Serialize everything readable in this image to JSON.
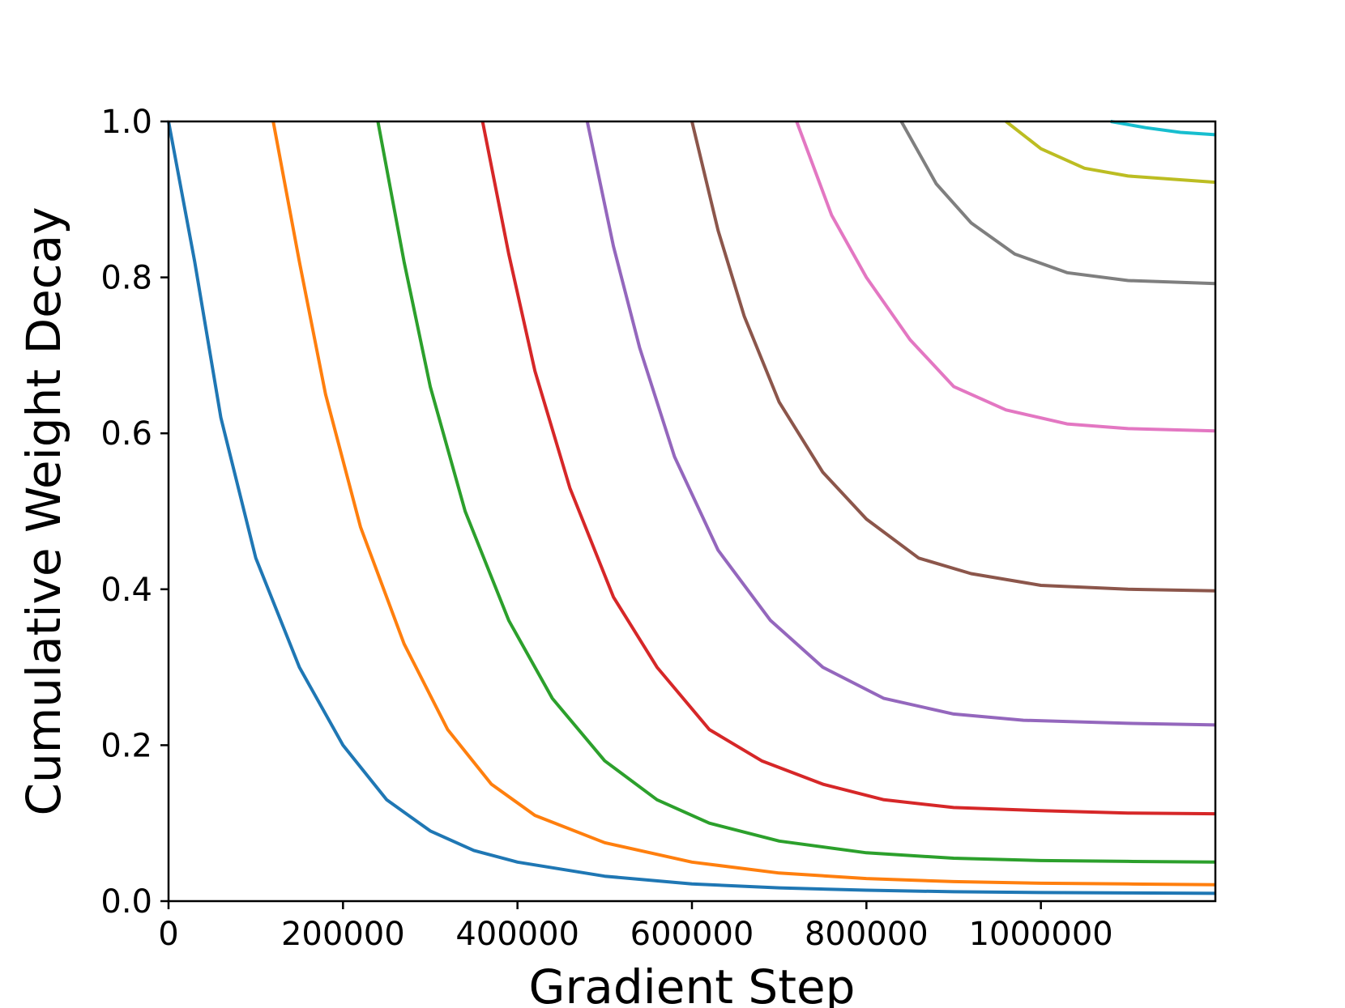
{
  "chart_data": {
    "type": "line",
    "title": "",
    "xlabel": "Gradient Step",
    "ylabel": "Cumulative Weight Decay",
    "xlim": [
      0,
      1200000
    ],
    "ylim": [
      0.0,
      1.0
    ],
    "x_ticks": [
      0,
      200000,
      400000,
      600000,
      800000,
      1000000
    ],
    "x_tick_labels": [
      "0",
      "200000",
      "400000",
      "600000",
      "800000",
      "1000000"
    ],
    "y_ticks": [
      0.0,
      0.2,
      0.4,
      0.6,
      0.8,
      1.0
    ],
    "y_tick_labels": [
      "0.0",
      "0.2",
      "0.4",
      "0.6",
      "0.8",
      "1.0"
    ],
    "grid": false,
    "legend": "none",
    "series": [
      {
        "color": "#1f77b4",
        "points": [
          [
            0,
            1.0
          ],
          [
            30000,
            0.82
          ],
          [
            60000,
            0.62
          ],
          [
            100000,
            0.44
          ],
          [
            150000,
            0.3
          ],
          [
            200000,
            0.2
          ],
          [
            250000,
            0.13
          ],
          [
            300000,
            0.09
          ],
          [
            350000,
            0.065
          ],
          [
            400000,
            0.05
          ],
          [
            500000,
            0.032
          ],
          [
            600000,
            0.022
          ],
          [
            700000,
            0.017
          ],
          [
            800000,
            0.014
          ],
          [
            900000,
            0.012
          ],
          [
            1000000,
            0.011
          ],
          [
            1100000,
            0.0105
          ],
          [
            1200000,
            0.01
          ]
        ]
      },
      {
        "color": "#ff7f0e",
        "points": [
          [
            120000,
            1.0
          ],
          [
            150000,
            0.82
          ],
          [
            180000,
            0.65
          ],
          [
            220000,
            0.48
          ],
          [
            270000,
            0.33
          ],
          [
            320000,
            0.22
          ],
          [
            370000,
            0.15
          ],
          [
            420000,
            0.11
          ],
          [
            500000,
            0.075
          ],
          [
            600000,
            0.05
          ],
          [
            700000,
            0.036
          ],
          [
            800000,
            0.029
          ],
          [
            900000,
            0.025
          ],
          [
            1000000,
            0.023
          ],
          [
            1100000,
            0.022
          ],
          [
            1200000,
            0.021
          ]
        ]
      },
      {
        "color": "#2ca02c",
        "points": [
          [
            240000,
            1.0
          ],
          [
            270000,
            0.82
          ],
          [
            300000,
            0.66
          ],
          [
            340000,
            0.5
          ],
          [
            390000,
            0.36
          ],
          [
            440000,
            0.26
          ],
          [
            500000,
            0.18
          ],
          [
            560000,
            0.13
          ],
          [
            620000,
            0.1
          ],
          [
            700000,
            0.077
          ],
          [
            800000,
            0.062
          ],
          [
            900000,
            0.055
          ],
          [
            1000000,
            0.052
          ],
          [
            1100000,
            0.051
          ],
          [
            1200000,
            0.05
          ]
        ]
      },
      {
        "color": "#d62728",
        "points": [
          [
            360000,
            1.0
          ],
          [
            390000,
            0.83
          ],
          [
            420000,
            0.68
          ],
          [
            460000,
            0.53
          ],
          [
            510000,
            0.39
          ],
          [
            560000,
            0.3
          ],
          [
            620000,
            0.22
          ],
          [
            680000,
            0.18
          ],
          [
            750000,
            0.15
          ],
          [
            820000,
            0.13
          ],
          [
            900000,
            0.12
          ],
          [
            1000000,
            0.116
          ],
          [
            1100000,
            0.113
          ],
          [
            1200000,
            0.112
          ]
        ]
      },
      {
        "color": "#9467bd",
        "points": [
          [
            480000,
            1.0
          ],
          [
            510000,
            0.84
          ],
          [
            540000,
            0.71
          ],
          [
            580000,
            0.57
          ],
          [
            630000,
            0.45
          ],
          [
            690000,
            0.36
          ],
          [
            750000,
            0.3
          ],
          [
            820000,
            0.26
          ],
          [
            900000,
            0.24
          ],
          [
            980000,
            0.232
          ],
          [
            1100000,
            0.228
          ],
          [
            1200000,
            0.226
          ]
        ]
      },
      {
        "color": "#8c564b",
        "points": [
          [
            600000,
            1.0
          ],
          [
            630000,
            0.86
          ],
          [
            660000,
            0.75
          ],
          [
            700000,
            0.64
          ],
          [
            750000,
            0.55
          ],
          [
            800000,
            0.49
          ],
          [
            860000,
            0.44
          ],
          [
            920000,
            0.42
          ],
          [
            1000000,
            0.405
          ],
          [
            1100000,
            0.4
          ],
          [
            1200000,
            0.398
          ]
        ]
      },
      {
        "color": "#e377c2",
        "points": [
          [
            720000,
            1.0
          ],
          [
            760000,
            0.88
          ],
          [
            800000,
            0.8
          ],
          [
            850000,
            0.72
          ],
          [
            900000,
            0.66
          ],
          [
            960000,
            0.63
          ],
          [
            1030000,
            0.612
          ],
          [
            1100000,
            0.606
          ],
          [
            1200000,
            0.603
          ]
        ]
      },
      {
        "color": "#7f7f7f",
        "points": [
          [
            840000,
            1.0
          ],
          [
            880000,
            0.92
          ],
          [
            920000,
            0.87
          ],
          [
            970000,
            0.83
          ],
          [
            1030000,
            0.806
          ],
          [
            1100000,
            0.796
          ],
          [
            1200000,
            0.792
          ]
        ]
      },
      {
        "color": "#bcbd22",
        "points": [
          [
            960000,
            1.0
          ],
          [
            1000000,
            0.965
          ],
          [
            1050000,
            0.94
          ],
          [
            1100000,
            0.93
          ],
          [
            1200000,
            0.922
          ]
        ]
      },
      {
        "color": "#17becf",
        "points": [
          [
            1080000,
            1.0
          ],
          [
            1120000,
            0.992
          ],
          [
            1160000,
            0.986
          ],
          [
            1200000,
            0.983
          ]
        ]
      }
    ]
  }
}
